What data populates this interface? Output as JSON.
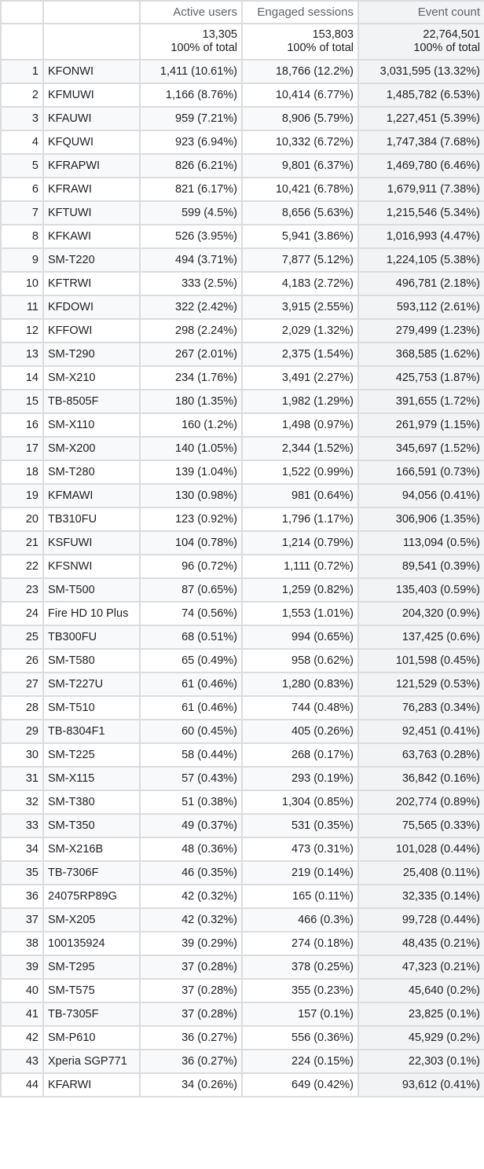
{
  "headers": [
    "",
    "",
    "Active users",
    "Engaged sessions",
    "Event count"
  ],
  "totals": {
    "active_users": "13,305",
    "active_users_pct": "100% of total",
    "engaged_sessions": "153,803",
    "engaged_sessions_pct": "100% of total",
    "event_count": "22,764,501",
    "event_count_pct": "100% of total"
  },
  "rows": [
    [
      "1",
      "KFONWI",
      "1,411 (10.61%)",
      "18,766 (12.2%)",
      "3,031,595 (13.32%)"
    ],
    [
      "2",
      "KFMUWI",
      "1,166 (8.76%)",
      "10,414 (6.77%)",
      "1,485,782 (6.53%)"
    ],
    [
      "3",
      "KFAUWI",
      "959 (7.21%)",
      "8,906 (5.79%)",
      "1,227,451 (5.39%)"
    ],
    [
      "4",
      "KFQUWI",
      "923 (6.94%)",
      "10,332 (6.72%)",
      "1,747,384 (7.68%)"
    ],
    [
      "5",
      "KFRAPWI",
      "826 (6.21%)",
      "9,801 (6.37%)",
      "1,469,780 (6.46%)"
    ],
    [
      "6",
      "KFRAWI",
      "821 (6.17%)",
      "10,421 (6.78%)",
      "1,679,911 (7.38%)"
    ],
    [
      "7",
      "KFTUWI",
      "599 (4.5%)",
      "8,656 (5.63%)",
      "1,215,546 (5.34%)"
    ],
    [
      "8",
      "KFKAWI",
      "526 (3.95%)",
      "5,941 (3.86%)",
      "1,016,993 (4.47%)"
    ],
    [
      "9",
      "SM-T220",
      "494 (3.71%)",
      "7,877 (5.12%)",
      "1,224,105 (5.38%)"
    ],
    [
      "10",
      "KFTRWI",
      "333 (2.5%)",
      "4,183 (2.72%)",
      "496,781 (2.18%)"
    ],
    [
      "11",
      "KFDOWI",
      "322 (2.42%)",
      "3,915 (2.55%)",
      "593,112 (2.61%)"
    ],
    [
      "12",
      "KFFOWI",
      "298 (2.24%)",
      "2,029 (1.32%)",
      "279,499 (1.23%)"
    ],
    [
      "13",
      "SM-T290",
      "267 (2.01%)",
      "2,375 (1.54%)",
      "368,585 (1.62%)"
    ],
    [
      "14",
      "SM-X210",
      "234 (1.76%)",
      "3,491 (2.27%)",
      "425,753 (1.87%)"
    ],
    [
      "15",
      "TB-8505F",
      "180 (1.35%)",
      "1,982 (1.29%)",
      "391,655 (1.72%)"
    ],
    [
      "16",
      "SM-X110",
      "160 (1.2%)",
      "1,498 (0.97%)",
      "261,979 (1.15%)"
    ],
    [
      "17",
      "SM-X200",
      "140 (1.05%)",
      "2,344 (1.52%)",
      "345,697 (1.52%)"
    ],
    [
      "18",
      "SM-T280",
      "139 (1.04%)",
      "1,522 (0.99%)",
      "166,591 (0.73%)"
    ],
    [
      "19",
      "KFMAWI",
      "130 (0.98%)",
      "981 (0.64%)",
      "94,056 (0.41%)"
    ],
    [
      "20",
      "TB310FU",
      "123 (0.92%)",
      "1,796 (1.17%)",
      "306,906 (1.35%)"
    ],
    [
      "21",
      "KSFUWI",
      "104 (0.78%)",
      "1,214 (0.79%)",
      "113,094 (0.5%)"
    ],
    [
      "22",
      "KFSNWI",
      "96 (0.72%)",
      "1,111 (0.72%)",
      "89,541 (0.39%)"
    ],
    [
      "23",
      "SM-T500",
      "87 (0.65%)",
      "1,259 (0.82%)",
      "135,403 (0.59%)"
    ],
    [
      "24",
      "Fire HD 10 Plus",
      "74 (0.56%)",
      "1,553 (1.01%)",
      "204,320 (0.9%)"
    ],
    [
      "25",
      "TB300FU",
      "68 (0.51%)",
      "994 (0.65%)",
      "137,425 (0.6%)"
    ],
    [
      "26",
      "SM-T580",
      "65 (0.49%)",
      "958 (0.62%)",
      "101,598 (0.45%)"
    ],
    [
      "27",
      "SM-T227U",
      "61 (0.46%)",
      "1,280 (0.83%)",
      "121,529 (0.53%)"
    ],
    [
      "28",
      "SM-T510",
      "61 (0.46%)",
      "744 (0.48%)",
      "76,283 (0.34%)"
    ],
    [
      "29",
      "TB-8304F1",
      "60 (0.45%)",
      "405 (0.26%)",
      "92,451 (0.41%)"
    ],
    [
      "30",
      "SM-T225",
      "58 (0.44%)",
      "268 (0.17%)",
      "63,763 (0.28%)"
    ],
    [
      "31",
      "SM-X115",
      "57 (0.43%)",
      "293 (0.19%)",
      "36,842 (0.16%)"
    ],
    [
      "32",
      "SM-T380",
      "51 (0.38%)",
      "1,304 (0.85%)",
      "202,774 (0.89%)"
    ],
    [
      "33",
      "SM-T350",
      "49 (0.37%)",
      "531 (0.35%)",
      "75,565 (0.33%)"
    ],
    [
      "34",
      "SM-X216B",
      "48 (0.36%)",
      "473 (0.31%)",
      "101,028 (0.44%)"
    ],
    [
      "35",
      "TB-7306F",
      "46 (0.35%)",
      "219 (0.14%)",
      "25,408 (0.11%)"
    ],
    [
      "36",
      "24075RP89G",
      "42 (0.32%)",
      "165 (0.11%)",
      "32,335 (0.14%)"
    ],
    [
      "37",
      "SM-X205",
      "42 (0.32%)",
      "466 (0.3%)",
      "99,728 (0.44%)"
    ],
    [
      "38",
      "100135924",
      "39 (0.29%)",
      "274 (0.18%)",
      "48,435 (0.21%)"
    ],
    [
      "39",
      "SM-T295",
      "37 (0.28%)",
      "378 (0.25%)",
      "47,323 (0.21%)"
    ],
    [
      "40",
      "SM-T575",
      "37 (0.28%)",
      "355 (0.23%)",
      "45,640 (0.2%)"
    ],
    [
      "41",
      "TB-7305F",
      "37 (0.28%)",
      "157 (0.1%)",
      "23,825 (0.1%)"
    ],
    [
      "42",
      "SM-P610",
      "36 (0.27%)",
      "556 (0.36%)",
      "45,929 (0.2%)"
    ],
    [
      "43",
      "Xperia SGP771",
      "36 (0.27%)",
      "224 (0.15%)",
      "22,303 (0.1%)"
    ],
    [
      "44",
      "KFARWI",
      "34 (0.26%)",
      "649 (0.42%)",
      "93,612 (0.41%)"
    ]
  ]
}
